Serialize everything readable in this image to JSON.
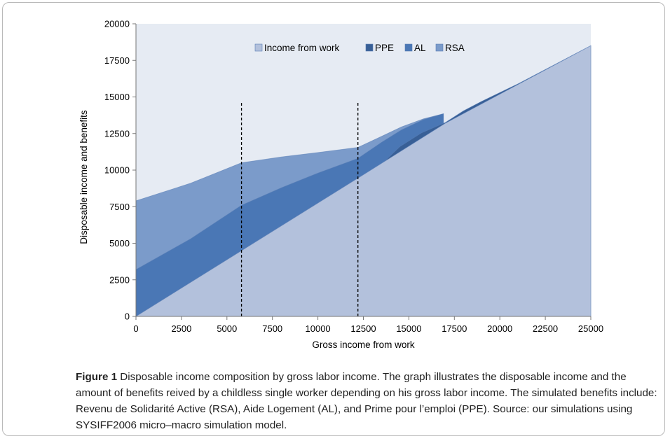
{
  "chart_data": {
    "type": "area",
    "stacked": true,
    "xlabel": "Gross income from work",
    "ylabel": "Disposable income and benefits",
    "xlim": [
      0,
      25000
    ],
    "ylim": [
      0,
      20000
    ],
    "x_ticks": [
      "0",
      "2500",
      "5000",
      "7500",
      "10000",
      "12500",
      "15000",
      "17500",
      "20000",
      "22500",
      "25000"
    ],
    "y_ticks": [
      "0",
      "2500",
      "5000",
      "7500",
      "10000",
      "12500",
      "15000",
      "17500",
      "20000"
    ],
    "grid": false,
    "legend_position": "top",
    "series": [
      {
        "name": "Income from work",
        "color": "#b3c1dc",
        "points": [
          [
            0,
            0
          ],
          [
            12200,
            9450
          ],
          [
            17000,
            13200
          ],
          [
            25000,
            18500
          ]
        ]
      },
      {
        "name": "PPE",
        "color": "#385f96",
        "points": [
          [
            0,
            0
          ],
          [
            12200,
            9450
          ],
          [
            13500,
            10400
          ],
          [
            14500,
            11600
          ],
          [
            15700,
            12550
          ],
          [
            17000,
            13250
          ],
          [
            18000,
            14050
          ],
          [
            19000,
            14700
          ],
          [
            20000,
            15300
          ],
          [
            21000,
            15900
          ],
          [
            22000,
            16550
          ],
          [
            23000,
            17200
          ],
          [
            24000,
            17850
          ],
          [
            25000,
            18500
          ]
        ]
      },
      {
        "name": "AL",
        "color": "#4a77b5",
        "points": [
          [
            0,
            3200
          ],
          [
            3000,
            5300
          ],
          [
            5800,
            7600
          ],
          [
            8000,
            8800
          ],
          [
            10000,
            9800
          ],
          [
            12200,
            10800
          ],
          [
            13500,
            11900
          ],
          [
            14600,
            12750
          ],
          [
            15800,
            13450
          ],
          [
            16900,
            13850
          ]
        ]
      },
      {
        "name": "RSA",
        "color": "#7b9bca",
        "points": [
          [
            0,
            7900
          ],
          [
            3000,
            9100
          ],
          [
            5800,
            10500
          ],
          [
            8000,
            10900
          ],
          [
            10000,
            11200
          ],
          [
            12200,
            11550
          ],
          [
            13400,
            12250
          ],
          [
            14600,
            12950
          ],
          [
            15800,
            13500
          ],
          [
            16900,
            13850
          ]
        ]
      }
    ],
    "reference_lines": [
      {
        "x": 5800,
        "y_top": 14600,
        "style": "dashed"
      },
      {
        "x": 12200,
        "y_top": 14600,
        "style": "dashed"
      }
    ]
  },
  "colors": {
    "plot_background": "#e6ebf3",
    "axis": "#777777",
    "dashed_line": "#000000"
  },
  "caption": {
    "label": "Figure 1",
    "text": " Disposable income composition by gross labor income. The graph illustrates the disposable income and the amount of benefits reived by a childless single worker depending on his gross labor income. The simulated benefits include: Revenu de Solidarité Active (RSA), Aide Logement (AL), and Prime pour l’emploi (PPE). Source: our simulations using SYSIFF2006 micro–macro simulation model."
  }
}
